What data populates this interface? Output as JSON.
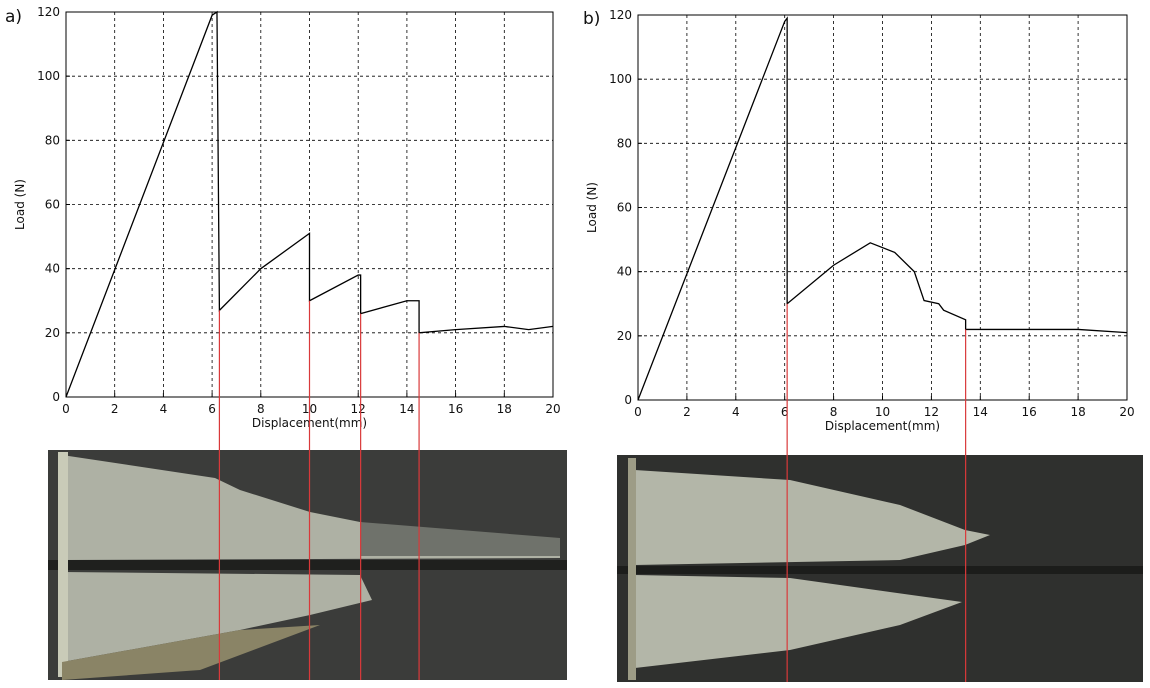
{
  "chart_data": [
    {
      "type": "line",
      "panel_label": "a)",
      "xlabel": "Displacement(mm)",
      "ylabel": "Load (N)",
      "x": [
        0,
        6,
        6.2,
        6.3,
        8,
        10,
        10,
        12,
        12.1,
        12.1,
        14,
        14.5,
        14.5,
        16,
        18,
        19,
        20
      ],
      "series": [
        {
          "color": "#000000",
          "values": [
            0,
            119,
            120,
            27,
            40,
            51,
            30,
            38,
            38,
            26,
            30,
            30,
            20,
            21,
            22,
            21,
            22
          ]
        }
      ],
      "markers": [
        6.3,
        10,
        12.1,
        14.5
      ],
      "marker_color": "#d9393a",
      "xlim": [
        0,
        20
      ],
      "ylim": [
        0,
        120
      ],
      "xticks": [
        0,
        2,
        4,
        6,
        8,
        10,
        12,
        14,
        16,
        18,
        20
      ],
      "yticks": [
        0,
        20,
        40,
        60,
        80,
        100,
        120
      ],
      "grid": true
    },
    {
      "type": "line",
      "panel_label": "b)",
      "xlabel": "Displacement(mm)",
      "ylabel": "Load (N)",
      "x": [
        0,
        6,
        6.1,
        6.1,
        8,
        9.5,
        10.5,
        11.3,
        11.7,
        12.3,
        12.5,
        13.4,
        13.4,
        14,
        16,
        18,
        20
      ],
      "series": [
        {
          "color": "#000000",
          "values": [
            0,
            118,
            119,
            30,
            42,
            49,
            46,
            40,
            31,
            30,
            28,
            25,
            22,
            22,
            22,
            22,
            21
          ]
        }
      ],
      "markers": [
        6.1,
        13.4
      ],
      "marker_color": "#d9393a",
      "xlim": [
        0,
        20
      ],
      "ylim": [
        0,
        120
      ],
      "xticks": [
        0,
        2,
        4,
        6,
        8,
        10,
        12,
        14,
        16,
        18,
        20
      ],
      "yticks": [
        0,
        20,
        40,
        60,
        80,
        100,
        120
      ],
      "grid": true
    }
  ]
}
